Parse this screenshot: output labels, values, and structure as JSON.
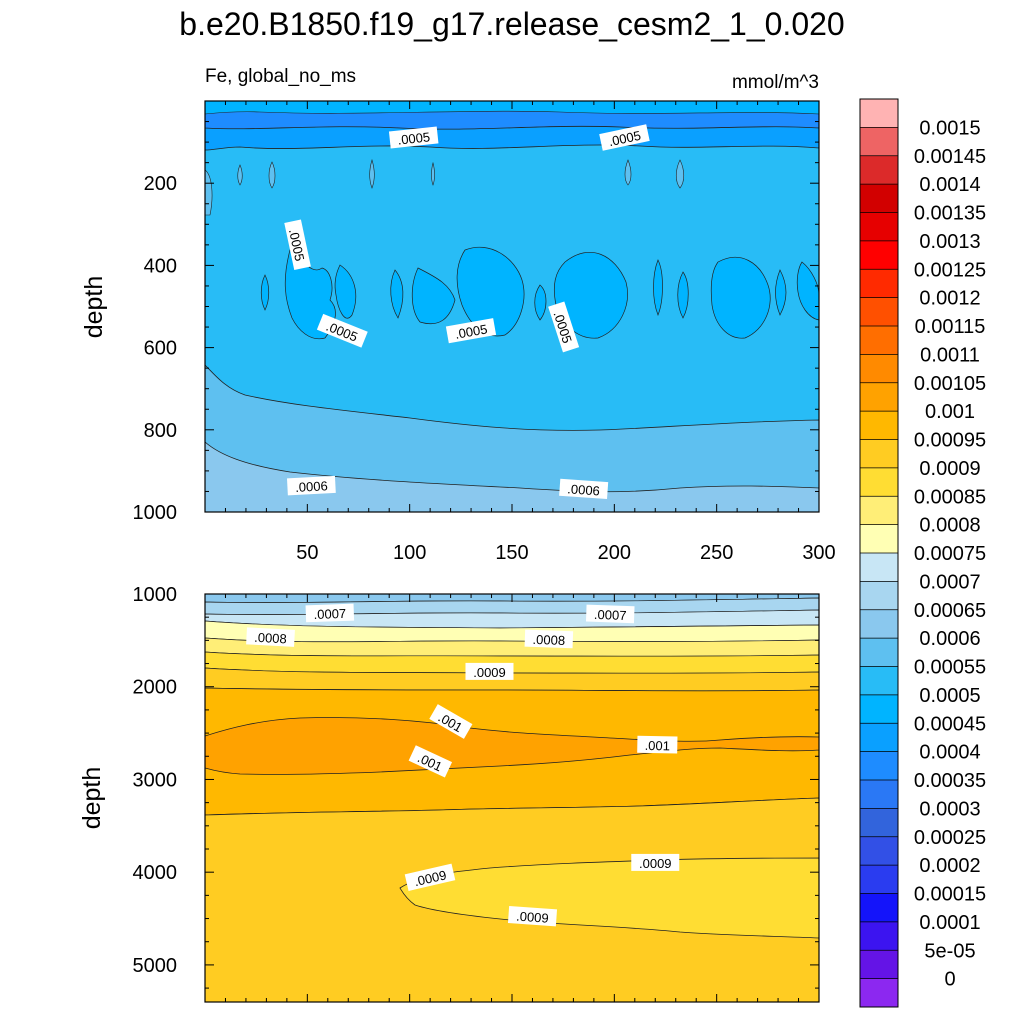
{
  "chart_data": [
    {
      "type": "heatmap",
      "panel": "upper",
      "title": "b.e20.B1850.f19_g17.release_cesm2_1_0.020",
      "left_string": "Fe, global_no_ms",
      "right_string": "mmol/m^3",
      "ylabel": "depth",
      "xlabel": "",
      "xlim": [
        0,
        300
      ],
      "ylim": [
        1000,
        0
      ],
      "x_ticks": [
        50,
        100,
        150,
        200,
        250,
        300
      ],
      "x_tick_labels": [
        "50",
        "100",
        "150",
        "200",
        "250",
        "300"
      ],
      "y_ticks": [
        200,
        400,
        600,
        800,
        1000
      ],
      "y_tick_labels": [
        "200",
        "400",
        "600",
        "800",
        "1000"
      ],
      "contour_labels": [
        {
          "text": ".0005",
          "x": 102,
          "y": 90
        },
        {
          "text": ".0005",
          "x": 205,
          "y": 90
        },
        {
          "text": ".0005",
          "x": 45,
          "y": 350
        },
        {
          "text": ".0005",
          "x": 67,
          "y": 560
        },
        {
          "text": ".0005",
          "x": 130,
          "y": 560
        },
        {
          "text": ".0005",
          "x": 175,
          "y": 550
        },
        {
          "text": ".0006",
          "x": 52,
          "y": 937
        },
        {
          "text": ".0006",
          "x": 185,
          "y": 945
        }
      ]
    },
    {
      "type": "heatmap",
      "panel": "lower",
      "ylabel": "depth",
      "xlabel": "",
      "xlim": [
        0,
        300
      ],
      "ylim": [
        5400,
        1000
      ],
      "y_ticks": [
        1000,
        2000,
        3000,
        4000,
        5000
      ],
      "y_tick_labels": [
        "1000",
        "2000",
        "3000",
        "4000",
        "5000"
      ],
      "contour_labels": [
        {
          "text": ".0007",
          "x": 61,
          "y": 1210
        },
        {
          "text": ".0007",
          "x": 198,
          "y": 1220
        },
        {
          "text": ".0008",
          "x": 32,
          "y": 1470
        },
        {
          "text": ".0008",
          "x": 168,
          "y": 1490
        },
        {
          "text": ".0009",
          "x": 139,
          "y": 1840
        },
        {
          "text": ".001",
          "x": 120,
          "y": 2380
        },
        {
          "text": ".001",
          "x": 110,
          "y": 2810
        },
        {
          "text": ".001",
          "x": 221,
          "y": 2630
        },
        {
          "text": ".0009",
          "x": 110,
          "y": 4060
        },
        {
          "text": ".0009",
          "x": 220,
          "y": 3900
        },
        {
          "text": ".0009",
          "x": 160,
          "y": 4480
        }
      ]
    }
  ],
  "colorbar": {
    "labels": [
      "0.0015",
      "0.00145",
      "0.0014",
      "0.00135",
      "0.0013",
      "0.00125",
      "0.0012",
      "0.00115",
      "0.0011",
      "0.00105",
      "0.001",
      "0.00095",
      "0.0009",
      "0.00085",
      "0.0008",
      "0.00075",
      "0.0007",
      "0.00065",
      "0.0006",
      "0.00055",
      "0.0005",
      "0.00045",
      "0.0004",
      "0.00035",
      "0.0003",
      "0.00025",
      "0.0002",
      "0.00015",
      "0.0001",
      "5e-05",
      "0"
    ],
    "colors": [
      "#FFB3B3",
      "#EE6464",
      "#DC2A2A",
      "#D20000",
      "#E60000",
      "#FF0000",
      "#FF2A00",
      "#FF5000",
      "#FF6E00",
      "#FF8A00",
      "#FFA200",
      "#FFB800",
      "#FFCC22",
      "#FFDD33",
      "#FFEE77",
      "#FFFFB4",
      "#C8E6F5",
      "#A8D6F0",
      "#8AC8EE",
      "#5EC0F0",
      "#28BCF6",
      "#00B4FF",
      "#0AA0FF",
      "#1E8CFF",
      "#2A78F5",
      "#3264DC",
      "#3250E6",
      "#2A3CF0",
      "#1414FA",
      "#3C14F0",
      "#6414E6",
      "#8C28F0"
    ]
  }
}
